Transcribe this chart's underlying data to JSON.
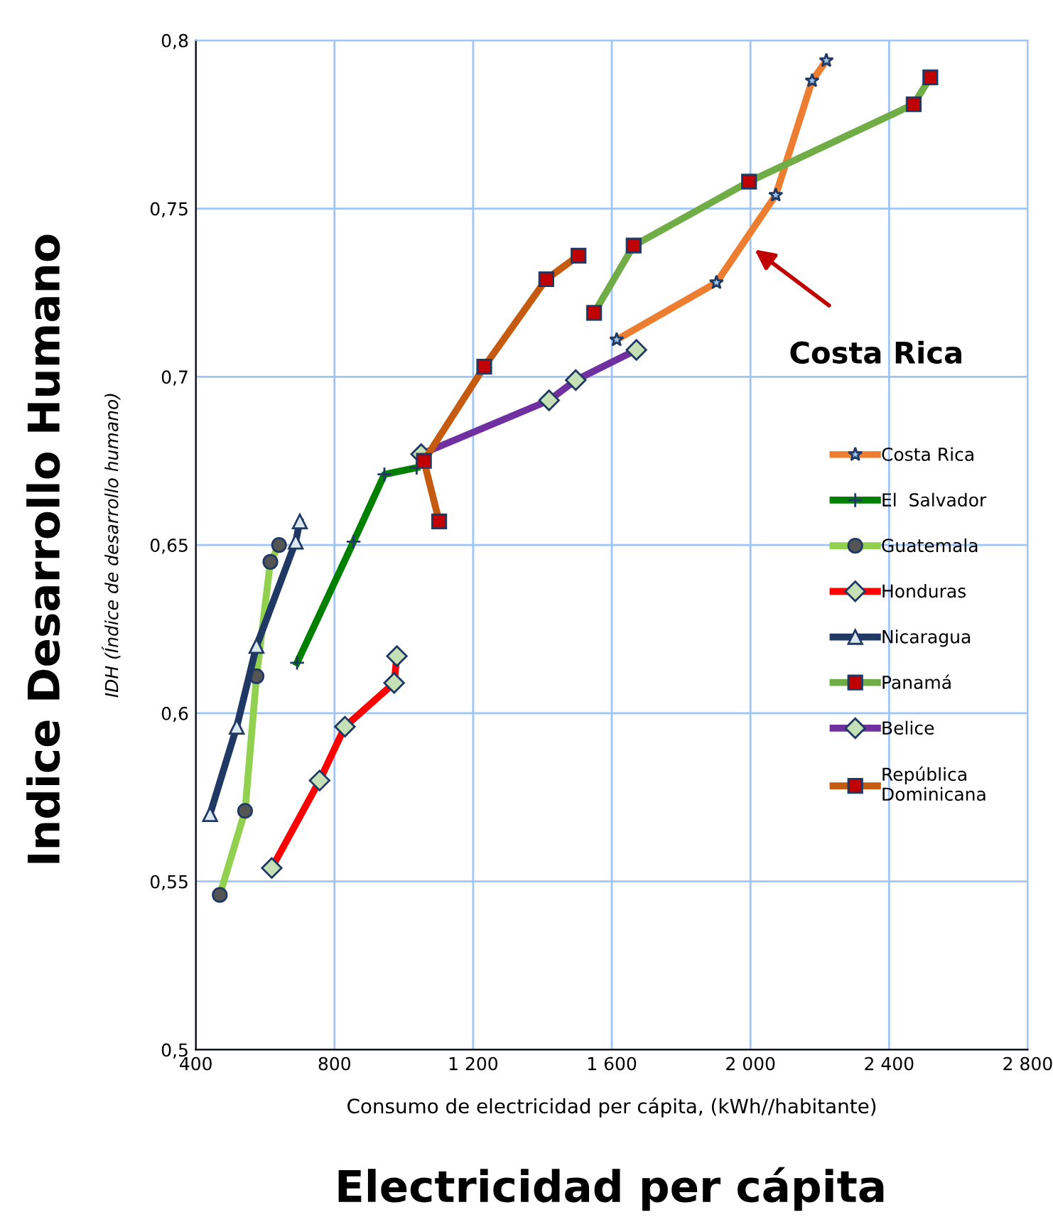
{
  "chart_data": {
    "type": "line",
    "xlabel": "Consumo de electricidad per cápita, (kWh//habitante)",
    "ylabel": "IDH (Índice de desarrollo humano)",
    "annotations": [
      "Indice Desarrollo Humano",
      "Electricidad per cápita",
      "Costa Rica"
    ],
    "xlim": [
      400,
      2800
    ],
    "xticks": [
      {
        "value": 400,
        "label": "400"
      },
      {
        "value": 800,
        "label": "800"
      },
      {
        "value": 1200,
        "label": "1 200"
      },
      {
        "value": 1600,
        "label": "1 600"
      },
      {
        "value": 2000,
        "label": "2 000"
      },
      {
        "value": 2400,
        "label": "2 400"
      },
      {
        "value": 2800,
        "label": "2 800"
      }
    ],
    "ylim": [
      0.5,
      0.8
    ],
    "yticks": [
      {
        "value": 0.5,
        "label": "0,5"
      },
      {
        "value": 0.55,
        "label": "0,55"
      },
      {
        "value": 0.6,
        "label": "0,6"
      },
      {
        "value": 0.65,
        "label": "0,65"
      },
      {
        "value": 0.7,
        "label": "0,7"
      },
      {
        "value": 0.75,
        "label": "0,75"
      },
      {
        "value": 0.8,
        "label": "0,8"
      }
    ],
    "grid": true,
    "legend": "right",
    "series": [
      {
        "name": "Costa Rica",
        "color": "#ed7d31",
        "marker": "star",
        "x": [
          1614,
          1902,
          2073,
          2178,
          2219
        ],
        "values": [
          0.711,
          0.728,
          0.754,
          0.788,
          0.794
        ]
      },
      {
        "name": "El  Salvador",
        "color": "#008000",
        "marker": "cross",
        "x": [
          692,
          855,
          944,
          1037
        ],
        "values": [
          0.615,
          0.651,
          0.671,
          0.673
        ]
      },
      {
        "name": "Guatemala",
        "color": "#92d050",
        "marker": "circle",
        "x": [
          469,
          542,
          575,
          615,
          640
        ],
        "values": [
          0.546,
          0.571,
          0.611,
          0.645,
          0.65
        ]
      },
      {
        "name": "Honduras",
        "color": "#ff0000",
        "marker": "diamond",
        "x": [
          619,
          757,
          830,
          972,
          980
        ],
        "values": [
          0.554,
          0.58,
          0.596,
          0.609,
          0.617
        ]
      },
      {
        "name": "Nicaragua",
        "color": "#1f3864",
        "marker": "triangle",
        "x": [
          441,
          518,
          575,
          688,
          700
        ],
        "values": [
          0.57,
          0.596,
          0.62,
          0.651,
          0.657
        ]
      },
      {
        "name": "Panamá",
        "color": "#70ad47",
        "marker": "square",
        "x": [
          1549,
          1663,
          1996,
          2471,
          2519
        ],
        "values": [
          0.719,
          0.739,
          0.758,
          0.781,
          0.789
        ]
      },
      {
        "name": "Belice",
        "color": "#7030a0",
        "marker": "diamond",
        "x": [
          1050,
          1419,
          1496,
          1671
        ],
        "values": [
          0.677,
          0.693,
          0.699,
          0.708
        ]
      },
      {
        "name": "República\nDominicana",
        "color": "#c55a11",
        "marker": "square",
        "x": [
          1102,
          1058,
          1232,
          1411,
          1504
        ],
        "values": [
          0.657,
          0.675,
          0.703,
          0.729,
          0.736
        ]
      }
    ]
  }
}
